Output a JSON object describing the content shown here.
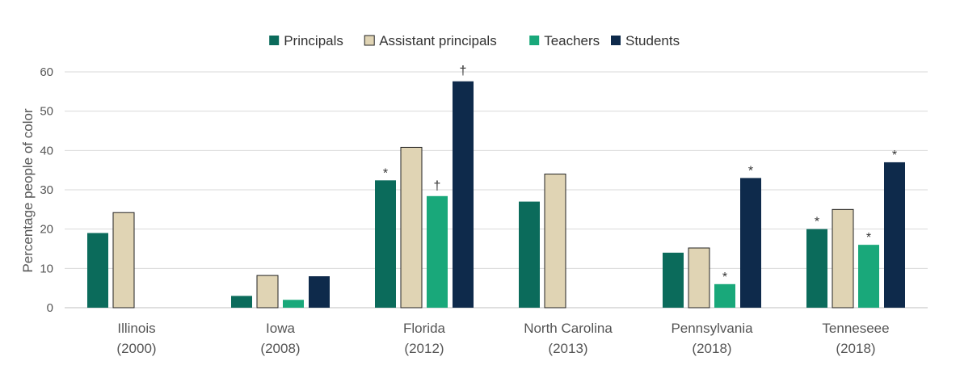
{
  "chart_data": {
    "type": "bar",
    "title": "",
    "xlabel": "",
    "ylabel": "Percentage people of color",
    "ylim": [
      0,
      60
    ],
    "yticks": [
      0,
      10,
      20,
      30,
      40,
      50,
      60
    ],
    "grid": true,
    "legend_position": "top-center",
    "categories": [
      [
        "Illinois",
        "(2000)"
      ],
      [
        "Iowa",
        "(2008)"
      ],
      [
        "Florida",
        "(2012)"
      ],
      [
        "North Carolina",
        "(2013)"
      ],
      [
        "Pennsylvania",
        "(2018)"
      ],
      [
        "Tenneseee",
        "(2018)"
      ]
    ],
    "series": [
      {
        "name": "Principals",
        "color": "#0b6b5b",
        "border": "",
        "values": [
          19,
          3,
          32.4,
          27,
          14,
          20
        ],
        "annotations": [
          null,
          null,
          "*",
          null,
          null,
          "*"
        ]
      },
      {
        "name": "Assistant principals",
        "color": "#e0d4b4",
        "border": "#222222",
        "values": [
          24.2,
          8.2,
          40.8,
          34,
          15.2,
          25
        ],
        "annotations": [
          null,
          null,
          null,
          null,
          null,
          null
        ]
      },
      {
        "name": "Teachers",
        "color": "#19a87a",
        "border": "",
        "values": [
          null,
          2,
          28.4,
          null,
          6,
          16
        ],
        "annotations": [
          null,
          null,
          "†",
          null,
          "*",
          "*"
        ]
      },
      {
        "name": "Students",
        "color": "#0e2a4b",
        "border": "",
        "values": [
          null,
          8,
          57.6,
          null,
          33,
          37
        ],
        "annotations": [
          null,
          null,
          "†",
          null,
          "*",
          "*"
        ]
      }
    ]
  }
}
